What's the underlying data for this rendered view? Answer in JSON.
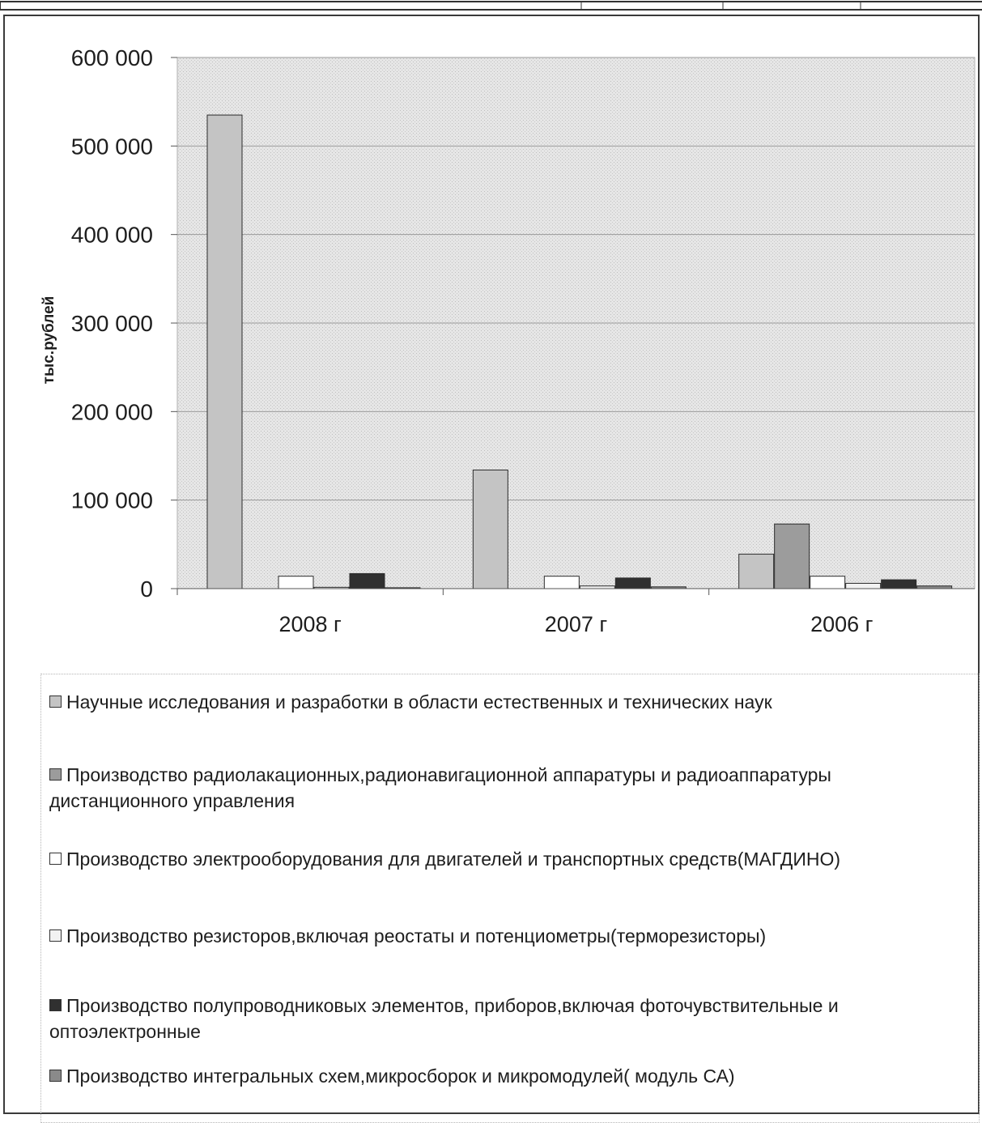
{
  "chart_data": {
    "type": "bar",
    "ylabel": "тыс.рублей",
    "xlabel": "",
    "ylim": [
      0,
      600000
    ],
    "yticks": [
      0,
      100000,
      200000,
      300000,
      400000,
      500000,
      600000
    ],
    "ytick_labels": [
      "0",
      "100 000",
      "200 000",
      "300 000",
      "400 000",
      "500 000",
      "600 000"
    ],
    "categories": [
      "2008 г",
      "2007 г",
      "2006 г"
    ],
    "grid": true,
    "legend_position": "bottom",
    "series": [
      {
        "name": "Научные исследования и разработки в области естественных и технических наук",
        "values": [
          535000,
          134000,
          39000
        ],
        "color": "#c4c4c4"
      },
      {
        "name": "Производство радиолакационных,радионавигационной аппаратуры и радиоаппаратуры дистанционного управления",
        "values": [
          0,
          0,
          73000
        ],
        "color": "#9c9c9c"
      },
      {
        "name": "Производство электрооборудования для двигателей и транспортных средств(МАГДИНО)",
        "values": [
          14000,
          14000,
          14000
        ],
        "color": "#ffffff"
      },
      {
        "name": "Производство резисторов,включая реостаты и потенциометры(терморезисторы)",
        "values": [
          1500,
          3000,
          6000
        ],
        "color": "#f2f2f2"
      },
      {
        "name": "Производство полупроводниковых элементов, приборов,включая фоточувствительные и оптоэлектронные",
        "values": [
          17000,
          12000,
          10000
        ],
        "color": "#303030"
      },
      {
        "name": "Производство интегральных схем,микросборок и микромодулей( модуль СА)",
        "values": [
          1000,
          2000,
          3000
        ],
        "color": "#8a8a8a"
      }
    ]
  }
}
